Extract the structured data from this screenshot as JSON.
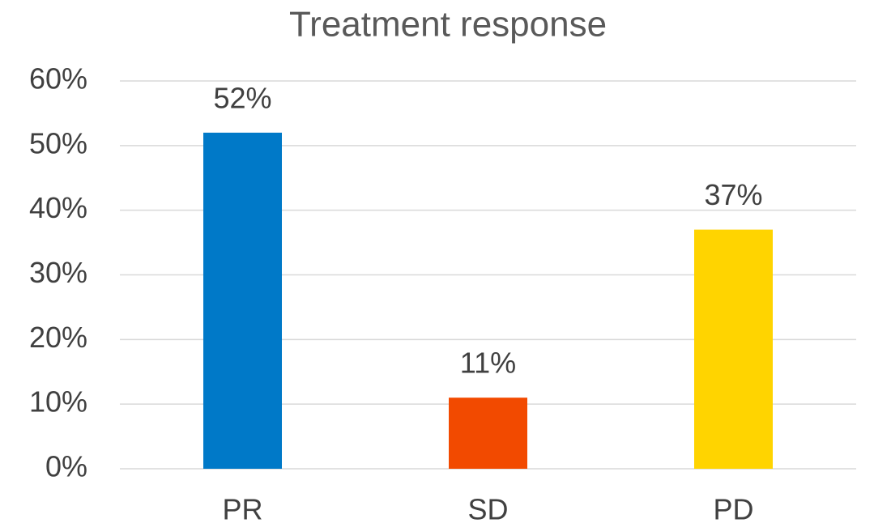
{
  "chart_data": {
    "type": "bar",
    "title": "Treatment response",
    "categories": [
      "PR",
      "SD",
      "PD"
    ],
    "values": [
      52,
      11,
      37
    ],
    "value_labels": [
      "52%",
      "11%",
      "37%"
    ],
    "colors": [
      "#0079c8",
      "#f24a00",
      "#ffd400"
    ],
    "ylim": [
      0,
      60
    ],
    "yticks": [
      {
        "value": 0,
        "label": "0%"
      },
      {
        "value": 10,
        "label": "10%"
      },
      {
        "value": 20,
        "label": "20%"
      },
      {
        "value": 30,
        "label": "30%"
      },
      {
        "value": 40,
        "label": "40%"
      },
      {
        "value": 50,
        "label": "50%"
      },
      {
        "value": 60,
        "label": "60%"
      }
    ],
    "grid": true
  }
}
